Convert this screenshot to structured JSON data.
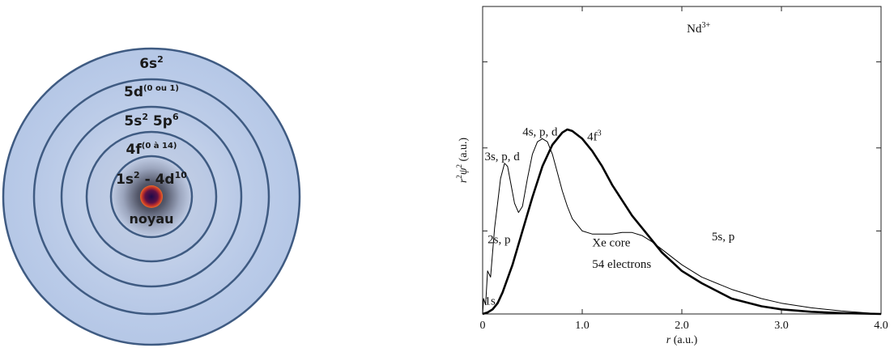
{
  "shells": {
    "labels": [
      {
        "base": "6s",
        "sup": "2"
      },
      {
        "base": "5d",
        "sup": "(0 ou 1)"
      },
      {
        "base": "5s",
        "sup": "2",
        "base2": " 5p",
        "sup2": "6"
      },
      {
        "base": "4f",
        "sup": "(0 à 14)"
      },
      {
        "base": "1s",
        "sup": "2",
        "base2": " - 4d",
        "sup2": "10"
      }
    ],
    "nucleus": "noyau",
    "colors": {
      "outer": "#b9cbe9",
      "stroke": "#3f5b82",
      "nucleus_core": "#1c0a4a",
      "nucleus_ring": "#e05020"
    }
  },
  "chart_data": {
    "type": "line",
    "title": {
      "base": "Nd",
      "sup": "3+"
    },
    "xlabel": {
      "italic": "r",
      "rest": " (a.u.)"
    },
    "ylabel": {
      "r": "r",
      "sup1": "2",
      "psi": "ψ",
      "sup2": "2",
      "rest": " (a.u.)"
    },
    "xlim": [
      0,
      4.0
    ],
    "ylim": [
      0,
      1.0
    ],
    "xticks": [
      {
        "value": 0,
        "label": "0"
      },
      {
        "value": 1.0,
        "label": "1.0"
      },
      {
        "value": 2.0,
        "label": "2.0"
      },
      {
        "value": 3.0,
        "label": "3.0"
      },
      {
        "value": 4.0,
        "label": "4.0"
      }
    ],
    "yticks": [
      0.27,
      0.54,
      0.82
    ],
    "grid": false,
    "series": [
      {
        "name": "4f3",
        "label": {
          "base": "4f",
          "sup": "3"
        },
        "stroke": "bold",
        "x": [
          0,
          0.05,
          0.1,
          0.15,
          0.2,
          0.3,
          0.4,
          0.5,
          0.6,
          0.7,
          0.8,
          0.85,
          0.9,
          1.0,
          1.1,
          1.2,
          1.3,
          1.4,
          1.5,
          1.6,
          1.8,
          2.0,
          2.2,
          2.5,
          2.8,
          3.0,
          3.3,
          3.6,
          4.0
        ],
        "y": [
          0,
          0.005,
          0.015,
          0.035,
          0.07,
          0.16,
          0.27,
          0.38,
          0.48,
          0.55,
          0.59,
          0.6,
          0.595,
          0.57,
          0.53,
          0.48,
          0.42,
          0.37,
          0.32,
          0.28,
          0.2,
          0.14,
          0.1,
          0.05,
          0.025,
          0.015,
          0.007,
          0.003,
          0
        ]
      },
      {
        "name": "Xe core 54 electrons",
        "stroke": "thin",
        "x": [
          0,
          0.01,
          0.03,
          0.05,
          0.08,
          0.1,
          0.12,
          0.15,
          0.18,
          0.22,
          0.25,
          0.28,
          0.32,
          0.36,
          0.4,
          0.45,
          0.5,
          0.55,
          0.6,
          0.65,
          0.7,
          0.75,
          0.8,
          0.85,
          0.9,
          1.0,
          1.1,
          1.2,
          1.3,
          1.4,
          1.5,
          1.6,
          1.7,
          1.8,
          2.0,
          2.2,
          2.5,
          2.8,
          3.0,
          3.3,
          3.6,
          3.8,
          4.0
        ],
        "y": [
          0,
          0.05,
          0.03,
          0.14,
          0.12,
          0.2,
          0.28,
          0.36,
          0.44,
          0.49,
          0.48,
          0.43,
          0.36,
          0.33,
          0.35,
          0.44,
          0.52,
          0.56,
          0.57,
          0.56,
          0.52,
          0.46,
          0.4,
          0.35,
          0.31,
          0.27,
          0.26,
          0.26,
          0.26,
          0.265,
          0.265,
          0.255,
          0.235,
          0.21,
          0.16,
          0.12,
          0.08,
          0.05,
          0.035,
          0.02,
          0.01,
          0.005,
          0
        ]
      }
    ],
    "annotations": [
      {
        "text": "1s",
        "x": 0.02,
        "y": 0.03
      },
      {
        "text": "2s, p",
        "x": 0.05,
        "y": 0.23
      },
      {
        "text": "3s, p, d",
        "x": 0.02,
        "y": 0.5
      },
      {
        "text": "4s, p, d",
        "x": 0.4,
        "y": 0.58
      },
      {
        "text": "Xe core",
        "x": 1.1,
        "y": 0.22
      },
      {
        "text": "54 electrons",
        "x": 1.1,
        "y": 0.15
      },
      {
        "text": "5s, p",
        "x": 2.3,
        "y": 0.24
      }
    ]
  }
}
